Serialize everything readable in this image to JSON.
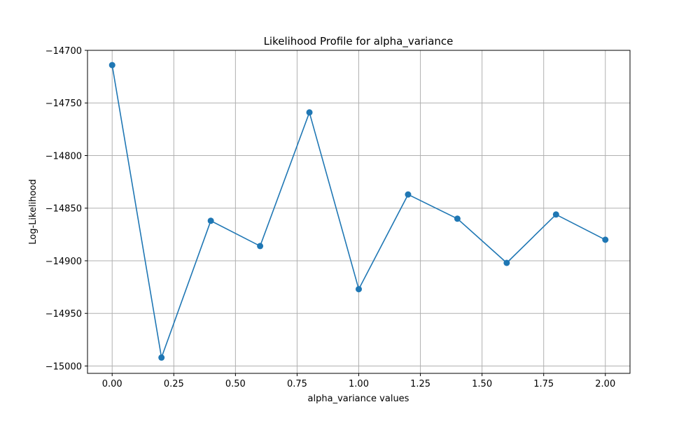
{
  "chart_data": {
    "type": "line",
    "title": "Likelihood Profile for alpha_variance",
    "xlabel": "alpha_variance values",
    "ylabel": "Log-Likelihood",
    "x": [
      0.0,
      0.2,
      0.4,
      0.6,
      0.8,
      1.0,
      1.2,
      1.4,
      1.6,
      1.8,
      2.0
    ],
    "series": [
      {
        "values": [
          -14714,
          -14992,
          -14862,
          -14886,
          -14759,
          -14927,
          -14837,
          -14860,
          -14902,
          -14856,
          -14880
        ],
        "color": "#1f77b4",
        "marker": "circle"
      }
    ],
    "xlim": [
      -0.1,
      2.1
    ],
    "ylim": [
      -15007,
      -14700
    ],
    "xticks": [
      0.0,
      0.25,
      0.5,
      0.75,
      1.0,
      1.25,
      1.5,
      1.75,
      2.0
    ],
    "xtick_labels": [
      "0.00",
      "0.25",
      "0.50",
      "0.75",
      "1.00",
      "1.25",
      "1.50",
      "1.75",
      "2.00"
    ],
    "yticks": [
      -14700,
      -14750,
      -14800,
      -14850,
      -14900,
      -14950,
      -15000
    ],
    "ytick_labels": [
      "−14700",
      "−14750",
      "−14800",
      "−14850",
      "−14900",
      "−14950",
      "−15000"
    ],
    "grid": true,
    "legend": "none"
  }
}
